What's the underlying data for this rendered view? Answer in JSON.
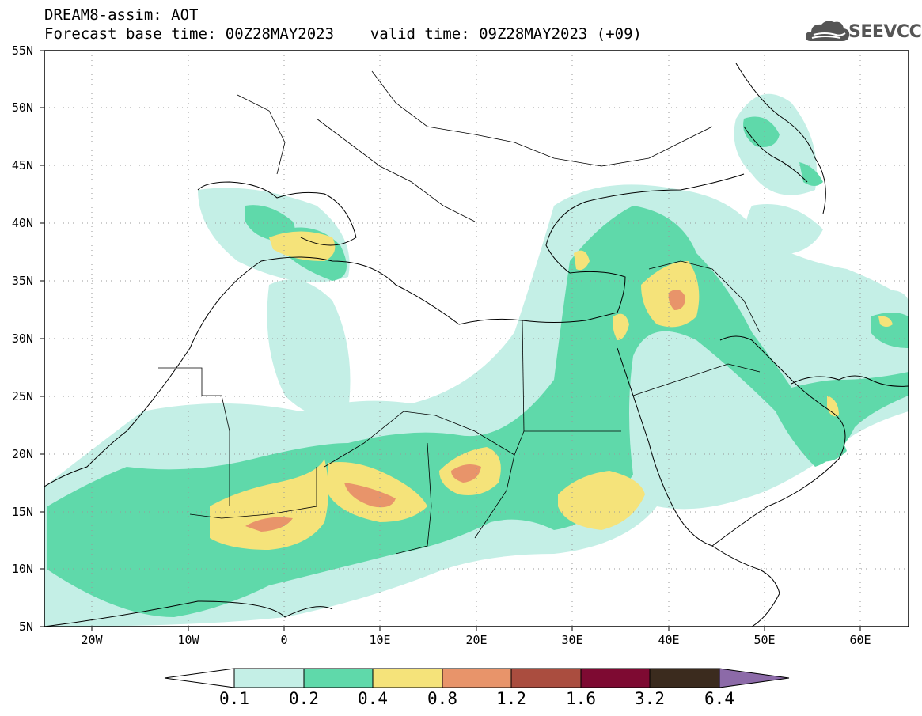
{
  "title": {
    "line1": "DREAM8-assim: AOT",
    "line2": "Forecast base time: 00Z28MAY2023    valid time: 09Z28MAY2023 (+09)"
  },
  "logo": {
    "text": "SEEVCCC",
    "icon": "cloud-icon"
  },
  "map": {
    "region": "North Africa / Middle East / Europe",
    "lon_range": [
      -25,
      65
    ],
    "lat_range": [
      5,
      55
    ],
    "gridlines": "dotted",
    "lat_labels": [
      "55N",
      "50N",
      "45N",
      "40N",
      "35N",
      "30N",
      "25N",
      "20N",
      "15N",
      "10N",
      "5N"
    ],
    "lon_labels": [
      "20W",
      "10W",
      "0",
      "10E",
      "20E",
      "30E",
      "40E",
      "50E",
      "60E"
    ]
  },
  "colorbar": {
    "labels": [
      "0.1",
      "0.2",
      "0.4",
      "0.8",
      "1.2",
      "1.6",
      "3.2",
      "6.4"
    ],
    "colors": [
      "#c4efe6",
      "#5fd9aa",
      "#f5e37a",
      "#e8946a",
      "#aa4d3f",
      "#7e0a32",
      "#3b2b1e",
      "#8c6aa8"
    ],
    "extend": "both"
  }
}
